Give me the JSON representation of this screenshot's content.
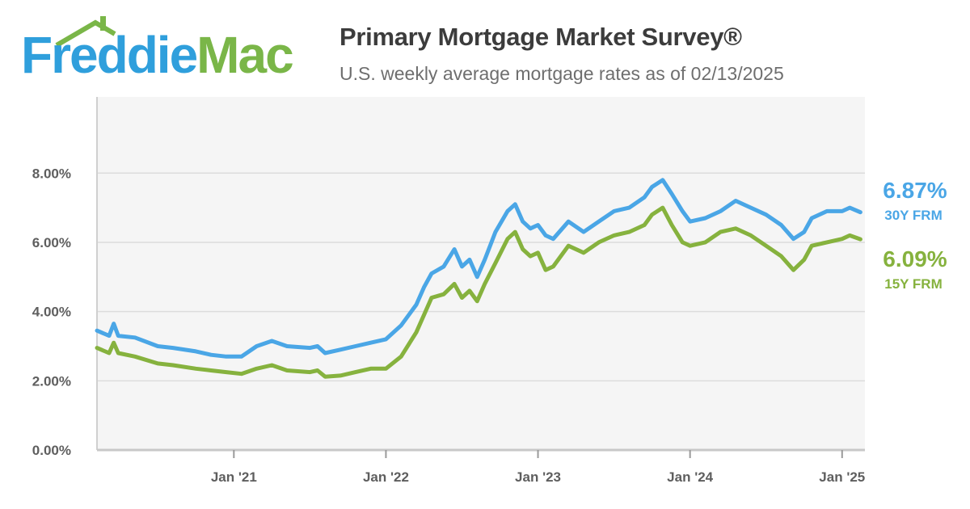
{
  "brand": {
    "name": "Freddie Mac",
    "wordmark_part1": "Freddie",
    "wordmark_part2": "Mac",
    "blue": "#2f9fdc",
    "green": "#7ab648"
  },
  "header": {
    "title": "Primary Mortgage Market Survey®",
    "subtitle": "U.S. weekly average mortgage rates as of 02/13/2025"
  },
  "chart_data": {
    "type": "line",
    "title": "Primary Mortgage Market Survey®",
    "subtitle": "U.S. weekly average mortgage rates as of 02/13/2025",
    "xlabel": "",
    "ylabel": "",
    "ylim": [
      0,
      10.2
    ],
    "xlim": [
      2020.1,
      2025.15
    ],
    "grid": true,
    "y_ticks": [
      0,
      2,
      4,
      6,
      8
    ],
    "y_tick_labels": [
      "0.00%",
      "2.00%",
      "4.00%",
      "6.00%",
      "8.00%"
    ],
    "x_ticks": [
      2021,
      2022,
      2023,
      2024,
      2025
    ],
    "x_tick_labels": [
      "Jan '21",
      "Jan '22",
      "Jan '23",
      "Jan '24",
      "Jan '25"
    ],
    "series": [
      {
        "name": "30Y FRM",
        "color": "#4aa6e6",
        "end_label": "6.87%",
        "points": [
          [
            2020.1,
            3.45
          ],
          [
            2020.18,
            3.3
          ],
          [
            2020.21,
            3.65
          ],
          [
            2020.24,
            3.3
          ],
          [
            2020.35,
            3.25
          ],
          [
            2020.5,
            3.0
          ],
          [
            2020.6,
            2.95
          ],
          [
            2020.75,
            2.85
          ],
          [
            2020.85,
            2.75
          ],
          [
            2020.95,
            2.7
          ],
          [
            2021.05,
            2.7
          ],
          [
            2021.15,
            3.0
          ],
          [
            2021.25,
            3.15
          ],
          [
            2021.35,
            3.0
          ],
          [
            2021.5,
            2.95
          ],
          [
            2021.55,
            3.0
          ],
          [
            2021.6,
            2.8
          ],
          [
            2021.7,
            2.9
          ],
          [
            2021.8,
            3.0
          ],
          [
            2021.9,
            3.1
          ],
          [
            2022.0,
            3.2
          ],
          [
            2022.1,
            3.6
          ],
          [
            2022.2,
            4.2
          ],
          [
            2022.25,
            4.7
          ],
          [
            2022.3,
            5.1
          ],
          [
            2022.38,
            5.3
          ],
          [
            2022.45,
            5.8
          ],
          [
            2022.5,
            5.3
          ],
          [
            2022.55,
            5.5
          ],
          [
            2022.6,
            5.0
          ],
          [
            2022.65,
            5.5
          ],
          [
            2022.72,
            6.3
          ],
          [
            2022.8,
            6.9
          ],
          [
            2022.85,
            7.1
          ],
          [
            2022.9,
            6.6
          ],
          [
            2022.95,
            6.4
          ],
          [
            2023.0,
            6.5
          ],
          [
            2023.05,
            6.2
          ],
          [
            2023.1,
            6.1
          ],
          [
            2023.2,
            6.6
          ],
          [
            2023.3,
            6.3
          ],
          [
            2023.4,
            6.6
          ],
          [
            2023.5,
            6.9
          ],
          [
            2023.6,
            7.0
          ],
          [
            2023.7,
            7.3
          ],
          [
            2023.75,
            7.6
          ],
          [
            2023.82,
            7.8
          ],
          [
            2023.88,
            7.4
          ],
          [
            2023.95,
            6.9
          ],
          [
            2024.0,
            6.6
          ],
          [
            2024.1,
            6.7
          ],
          [
            2024.2,
            6.9
          ],
          [
            2024.3,
            7.2
          ],
          [
            2024.4,
            7.0
          ],
          [
            2024.5,
            6.8
          ],
          [
            2024.6,
            6.5
          ],
          [
            2024.68,
            6.1
          ],
          [
            2024.75,
            6.3
          ],
          [
            2024.8,
            6.7
          ],
          [
            2024.9,
            6.9
          ],
          [
            2025.0,
            6.9
          ],
          [
            2025.05,
            7.0
          ],
          [
            2025.12,
            6.87
          ]
        ]
      },
      {
        "name": "15Y FRM",
        "color": "#86b23e",
        "end_label": "6.09%",
        "points": [
          [
            2020.1,
            2.95
          ],
          [
            2020.18,
            2.8
          ],
          [
            2020.21,
            3.1
          ],
          [
            2020.24,
            2.8
          ],
          [
            2020.35,
            2.7
          ],
          [
            2020.5,
            2.5
          ],
          [
            2020.6,
            2.45
          ],
          [
            2020.75,
            2.35
          ],
          [
            2020.85,
            2.3
          ],
          [
            2020.95,
            2.25
          ],
          [
            2021.05,
            2.2
          ],
          [
            2021.15,
            2.35
          ],
          [
            2021.25,
            2.45
          ],
          [
            2021.35,
            2.3
          ],
          [
            2021.5,
            2.25
          ],
          [
            2021.55,
            2.3
          ],
          [
            2021.6,
            2.12
          ],
          [
            2021.7,
            2.15
          ],
          [
            2021.8,
            2.25
          ],
          [
            2021.9,
            2.35
          ],
          [
            2022.0,
            2.35
          ],
          [
            2022.1,
            2.7
          ],
          [
            2022.2,
            3.4
          ],
          [
            2022.25,
            3.9
          ],
          [
            2022.3,
            4.4
          ],
          [
            2022.38,
            4.5
          ],
          [
            2022.45,
            4.8
          ],
          [
            2022.5,
            4.4
          ],
          [
            2022.55,
            4.6
          ],
          [
            2022.6,
            4.3
          ],
          [
            2022.65,
            4.8
          ],
          [
            2022.72,
            5.4
          ],
          [
            2022.8,
            6.1
          ],
          [
            2022.85,
            6.3
          ],
          [
            2022.9,
            5.8
          ],
          [
            2022.95,
            5.6
          ],
          [
            2023.0,
            5.7
          ],
          [
            2023.05,
            5.2
          ],
          [
            2023.1,
            5.3
          ],
          [
            2023.2,
            5.9
          ],
          [
            2023.3,
            5.7
          ],
          [
            2023.4,
            6.0
          ],
          [
            2023.5,
            6.2
          ],
          [
            2023.6,
            6.3
          ],
          [
            2023.7,
            6.5
          ],
          [
            2023.75,
            6.8
          ],
          [
            2023.82,
            7.0
          ],
          [
            2023.88,
            6.5
          ],
          [
            2023.95,
            6.0
          ],
          [
            2024.0,
            5.9
          ],
          [
            2024.1,
            6.0
          ],
          [
            2024.2,
            6.3
          ],
          [
            2024.3,
            6.4
          ],
          [
            2024.4,
            6.2
          ],
          [
            2024.5,
            5.9
          ],
          [
            2024.6,
            5.6
          ],
          [
            2024.68,
            5.2
          ],
          [
            2024.75,
            5.5
          ],
          [
            2024.8,
            5.9
          ],
          [
            2024.9,
            6.0
          ],
          [
            2025.0,
            6.1
          ],
          [
            2025.05,
            6.2
          ],
          [
            2025.12,
            6.09
          ]
        ]
      }
    ]
  }
}
